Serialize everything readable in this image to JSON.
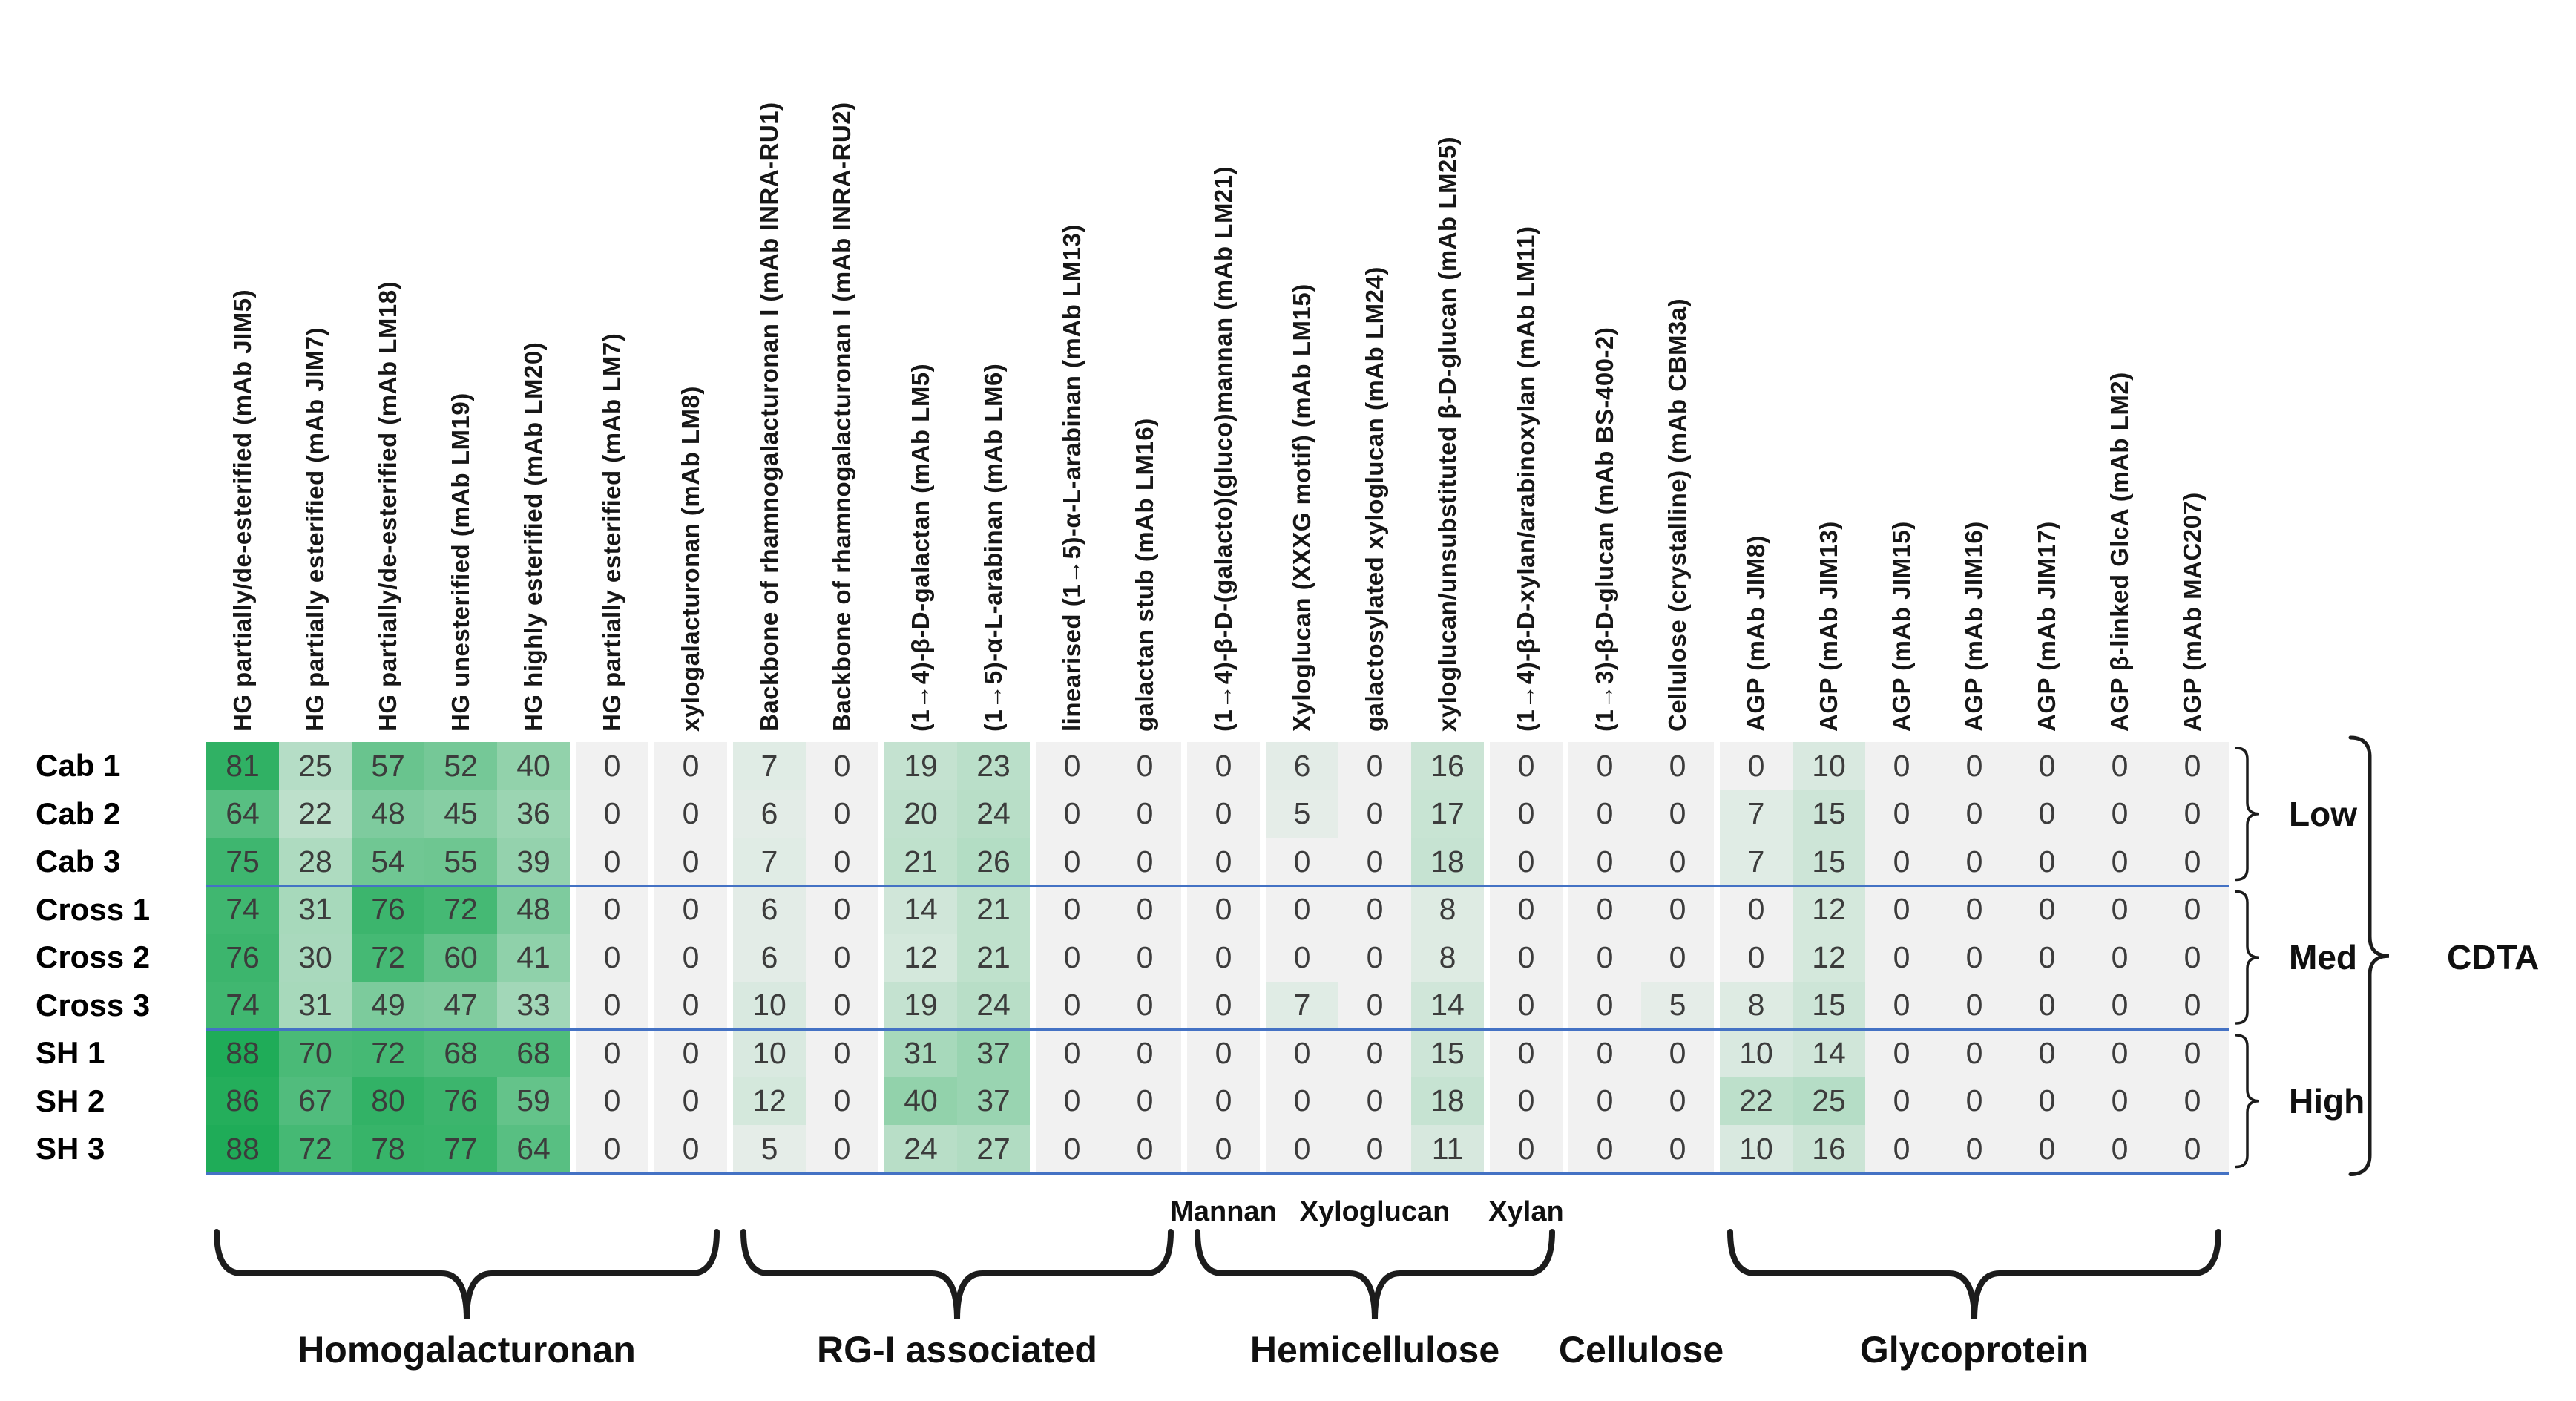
{
  "figure": {
    "extraction_label": "CDTA",
    "row_groups": [
      {
        "label": "Low",
        "rows": [
          0,
          2
        ]
      },
      {
        "label": "Med",
        "rows": [
          3,
          5
        ]
      },
      {
        "label": "High",
        "rows": [
          6,
          8
        ]
      }
    ],
    "column_groups": [
      {
        "label": "Homogalacturonan",
        "cols": [
          0,
          6
        ],
        "brace": true
      },
      {
        "label": "RG-I associated",
        "cols": [
          7,
          12
        ],
        "brace": true
      },
      {
        "label": "Hemicellulose",
        "cols": [
          13,
          17
        ],
        "brace": true
      },
      {
        "label": "Cellulose",
        "cols": [
          18,
          19
        ],
        "brace": false
      },
      {
        "label": "Glycoprotein",
        "cols": [
          20,
          26
        ],
        "brace": true
      }
    ],
    "sub_labels": [
      {
        "label": "Mannan",
        "cols": [
          13,
          13
        ]
      },
      {
        "label": "Xyloglucan",
        "cols": [
          14,
          16
        ]
      },
      {
        "label": "Xylan",
        "cols": [
          17,
          17
        ]
      }
    ]
  },
  "chart_data": {
    "type": "heatmap",
    "rows": [
      "Cab 1",
      "Cab 2",
      "Cab 3",
      "Cross 1",
      "Cross 2",
      "Cross 3",
      "SH 1",
      "SH 2",
      "SH 3"
    ],
    "columns": [
      "HG partially/de-esterified (mAb JIM5)",
      "HG partially esterified (mAb JIM7)",
      "HG partially/de-esterified (mAb LM18)",
      "HG unesterified (mAb LM19)",
      "HG highly esterified (mAb LM20)",
      "HG partially esterified (mAb LM7)",
      "xylogalacturonan (mAb LM8)",
      "Backbone of rhamnogalacturonan I (mAb INRA-RU1)",
      "Backbone of rhamnogalacturonan I (mAb INRA-RU2)",
      "(1→4)-β-D-galactan (mAb LM5)",
      "(1→5)-α-L-arabinan (mAb LM6)",
      "linearised (1→5)-α-L-arabinan (mAb LM13)",
      "galactan stub (mAb LM16)",
      "(1→4)-β-D-(galacto)(gluco)mannan (mAb LM21)",
      "Xyloglucan (XXXG motif) (mAb LM15)",
      "galactosylated xyloglucan (mAb LM24)",
      "xyloglucan/unsubstituted β-D-glucan (mAb LM25)",
      "(1→4)-β-D-xylan/arabinoxylan (mAb LM11)",
      "(1→3)-β-D-glucan (mAb BS-400-2)",
      "Cellulose (crystalline) (mAb CBM3a)",
      "AGP (mAb JIM8)",
      "AGP (mAb JIM13)",
      "AGP (mAb JIM15)",
      "AGP (mAb JIM16)",
      "AGP (mAb JIM17)",
      "AGP β-linked GlcA (mAb LM2)",
      "AGP (mAb MAC207)"
    ],
    "values": [
      [
        81,
        25,
        57,
        52,
        40,
        0,
        0,
        7,
        0,
        19,
        23,
        0,
        0,
        0,
        6,
        0,
        16,
        0,
        0,
        0,
        0,
        10,
        0,
        0,
        0,
        0,
        0
      ],
      [
        64,
        22,
        48,
        45,
        36,
        0,
        0,
        6,
        0,
        20,
        24,
        0,
        0,
        0,
        5,
        0,
        17,
        0,
        0,
        0,
        7,
        15,
        0,
        0,
        0,
        0,
        0
      ],
      [
        75,
        28,
        54,
        55,
        39,
        0,
        0,
        7,
        0,
        21,
        26,
        0,
        0,
        0,
        0,
        0,
        18,
        0,
        0,
        0,
        7,
        15,
        0,
        0,
        0,
        0,
        0
      ],
      [
        74,
        31,
        76,
        72,
        48,
        0,
        0,
        6,
        0,
        14,
        21,
        0,
        0,
        0,
        0,
        0,
        8,
        0,
        0,
        0,
        0,
        12,
        0,
        0,
        0,
        0,
        0
      ],
      [
        76,
        30,
        72,
        60,
        41,
        0,
        0,
        6,
        0,
        12,
        21,
        0,
        0,
        0,
        0,
        0,
        8,
        0,
        0,
        0,
        0,
        12,
        0,
        0,
        0,
        0,
        0
      ],
      [
        74,
        31,
        49,
        47,
        33,
        0,
        0,
        10,
        0,
        19,
        24,
        0,
        0,
        0,
        7,
        0,
        14,
        0,
        0,
        5,
        8,
        15,
        0,
        0,
        0,
        0,
        0
      ],
      [
        88,
        70,
        72,
        68,
        68,
        0,
        0,
        10,
        0,
        31,
        37,
        0,
        0,
        0,
        0,
        0,
        15,
        0,
        0,
        0,
        10,
        14,
        0,
        0,
        0,
        0,
        0
      ],
      [
        86,
        67,
        80,
        76,
        59,
        0,
        0,
        12,
        0,
        40,
        37,
        0,
        0,
        0,
        0,
        0,
        18,
        0,
        0,
        0,
        22,
        25,
        0,
        0,
        0,
        0,
        0
      ],
      [
        88,
        72,
        78,
        77,
        64,
        0,
        0,
        5,
        0,
        24,
        27,
        0,
        0,
        0,
        0,
        0,
        11,
        0,
        0,
        0,
        10,
        16,
        0,
        0,
        0,
        0,
        0
      ]
    ],
    "color_scale": {
      "min_value": 0,
      "max_value": 88,
      "min_color": "#f1f1f1",
      "max_color": "#1fac58"
    },
    "separator_line_color": "#4472c4",
    "legend_position": "none",
    "grid": false
  }
}
